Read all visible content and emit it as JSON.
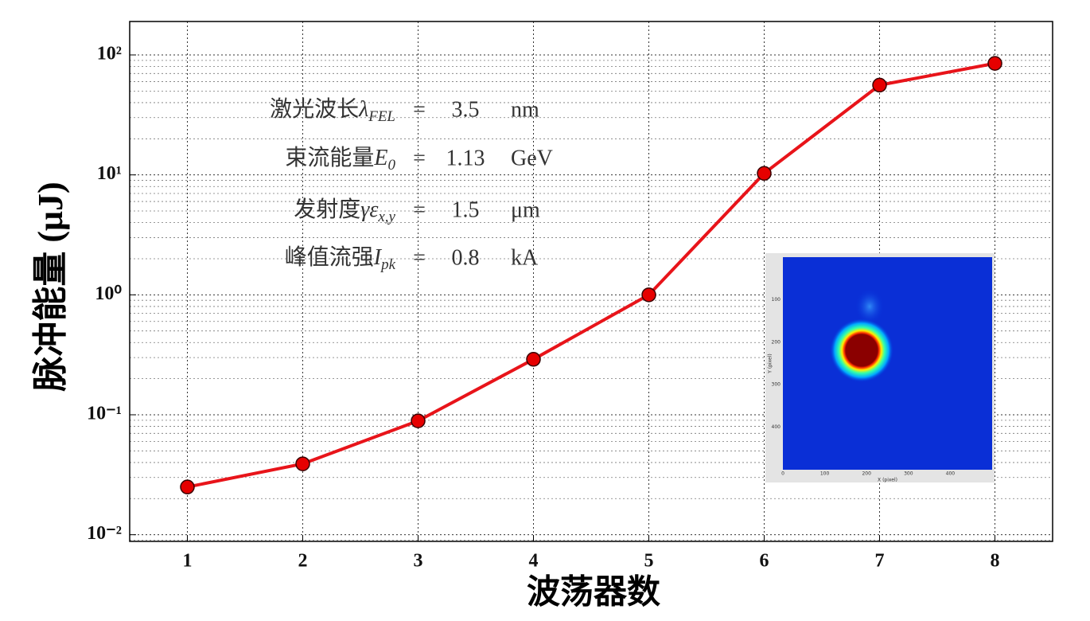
{
  "chart_data": {
    "type": "line",
    "xlabel": "波荡器数",
    "ylabel": "脉冲能量 (μJ)",
    "x": [
      1,
      2,
      3,
      4,
      5,
      6,
      7,
      8
    ],
    "series": [
      {
        "color": "#e8141a",
        "marker_color": "#e60000",
        "values": [
          0.025,
          0.039,
          0.089,
          0.29,
          1.0,
          10.3,
          56,
          85
        ]
      }
    ],
    "xlim": [
      0.5,
      8.5
    ],
    "ylim": [
      0.0088,
      190
    ],
    "xticks": [
      1,
      2,
      3,
      4,
      5,
      6,
      7,
      8
    ],
    "yticks": [
      {
        "value": 0.01,
        "label": "10⁻²"
      },
      {
        "value": 0.1,
        "label": "10⁻¹"
      },
      {
        "value": 1,
        "label": "10⁰"
      },
      {
        "value": 10,
        "label": "10¹"
      },
      {
        "value": 100,
        "label": "10²"
      }
    ],
    "log_y": true,
    "grid": true,
    "minor_grid": true,
    "annotations": [
      {
        "name": "激光波长",
        "symbol": "λ",
        "subscript": "FEL",
        "relation": "=",
        "value": "3.5",
        "unit": "nm"
      },
      {
        "name": "束流能量",
        "symbol": "E",
        "subscript": "0",
        "relation": "=",
        "value": "1.13",
        "unit": "GeV"
      },
      {
        "name": "发射度",
        "symbol": "γε",
        "subscript": "x,y",
        "relation": "=",
        "value": "1.5",
        "unit": "μm"
      },
      {
        "name": "峰值流强",
        "symbol": "I",
        "subscript": "pk",
        "relation": "=",
        "value": "0.8",
        "unit": "kA"
      }
    ],
    "inset": {
      "xlabel": "X (pixel)",
      "ylabel": "Y (pixel)",
      "xticks": [
        0,
        100,
        200,
        300,
        400
      ],
      "yticks": [
        100,
        200,
        300,
        400
      ],
      "range": [
        0,
        500
      ]
    }
  }
}
